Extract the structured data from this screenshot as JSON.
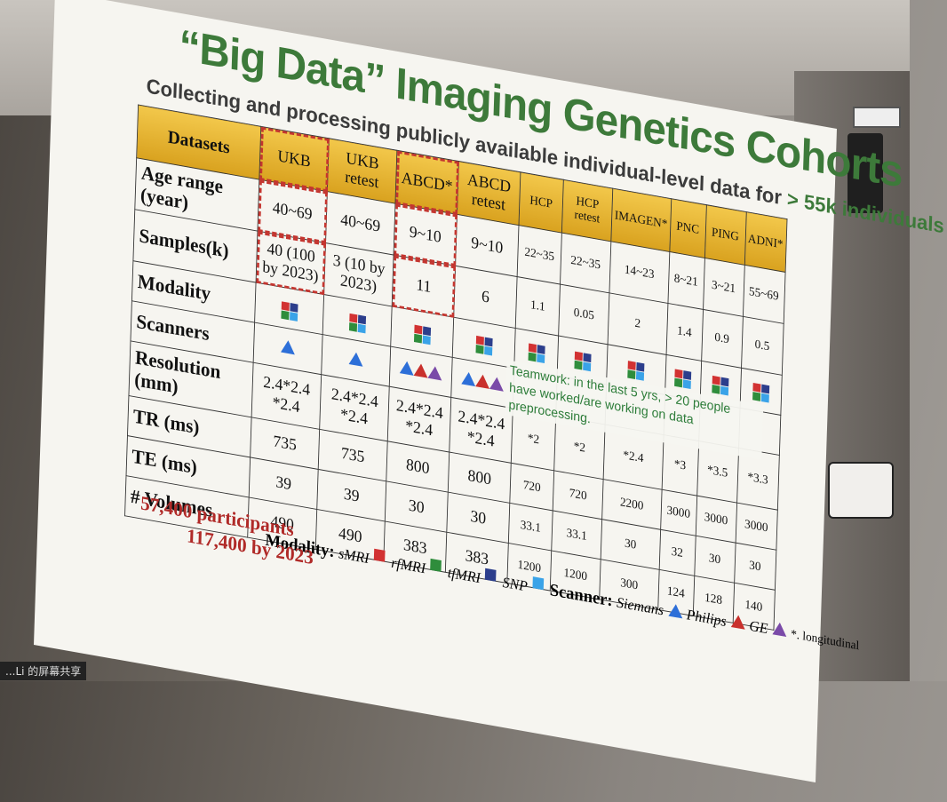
{
  "slide": {
    "title": "“Big Data” Imaging Genetics Cohorts",
    "subtitle_prefix": "Collecting and processing publicly available individual-level data for ",
    "subtitle_highlight": "> 55k individuals",
    "header": [
      "Datasets",
      "UKB",
      "UKB retest",
      "ABCD*",
      "ABCD retest",
      "HCP",
      "HCP retest",
      "IMAGEN*",
      "PNC",
      "PING",
      "ADNI*"
    ],
    "rows": [
      {
        "label": "Age range (year)",
        "cells": [
          "40~69",
          "40~69",
          "9~10",
          "9~10",
          "22~35",
          "22~35",
          "14~23",
          "8~21",
          "3~21",
          "55~69"
        ]
      },
      {
        "label": "Samples(k)",
        "cells": [
          "40 (100 by 2023)",
          "3 (10 by 2023)",
          "11",
          "6",
          "1.1",
          "0.05",
          "2",
          "1.4",
          "0.9",
          "0.5"
        ]
      },
      {
        "label": "Modality",
        "cells": [
          "",
          "",
          "",
          "",
          "",
          "",
          "",
          "",
          "",
          ""
        ]
      },
      {
        "label": "Scanners",
        "cells": [
          "",
          "",
          "",
          "",
          "",
          "",
          "",
          "",
          "",
          ""
        ]
      },
      {
        "label": "Resolution (mm)",
        "cells": [
          "2.4*2.4 *2.4",
          "2.4*2.4 *2.4",
          "2.4*2.4 *2.4",
          "2.4*2.4 *2.4",
          "*2",
          "*2",
          "*2.4",
          "*3",
          "*3.5",
          "*3.3"
        ]
      },
      {
        "label": "TR (ms)",
        "cells": [
          "735",
          "735",
          "800",
          "800",
          "720",
          "720",
          "2200",
          "3000",
          "3000",
          "3000"
        ]
      },
      {
        "label": "TE (ms)",
        "cells": [
          "39",
          "39",
          "30",
          "30",
          "33.1",
          "33.1",
          "30",
          "32",
          "30",
          "30"
        ]
      },
      {
        "label": "# Volumes",
        "cells": [
          "490",
          "490",
          "383",
          "383",
          "1200",
          "1200",
          "300",
          "124",
          "128",
          "140"
        ]
      }
    ],
    "legend": {
      "modality_label": "Modality:",
      "modalities": [
        "sMRI",
        "rfMRI",
        "tfMRI",
        "SNP"
      ],
      "scanner_label": "Scanner:",
      "scanners": [
        "Siemans",
        "Philips",
        "GE"
      ],
      "note": "*. longitudinal"
    },
    "participants_line1": "57,400 participants",
    "participants_line2": "117,400 by 2023",
    "teamwork": "Teamwork: in the last 5 yrs, > 20 people have worked/are working on data preprocessing.",
    "overlay": "...Li 的屏幕共享"
  },
  "colors": {
    "title_green": "#3d7a3a",
    "header_gold": "#e0ac2a",
    "dash_red": "#c4352f",
    "smri": "#d23232",
    "rfmri": "#2f8d3c",
    "tfmri": "#2c3e8c",
    "snp": "#3aa3e8",
    "siemens": "#2d6fd8",
    "philips": "#c9302c",
    "ge": "#7a4aa8"
  }
}
